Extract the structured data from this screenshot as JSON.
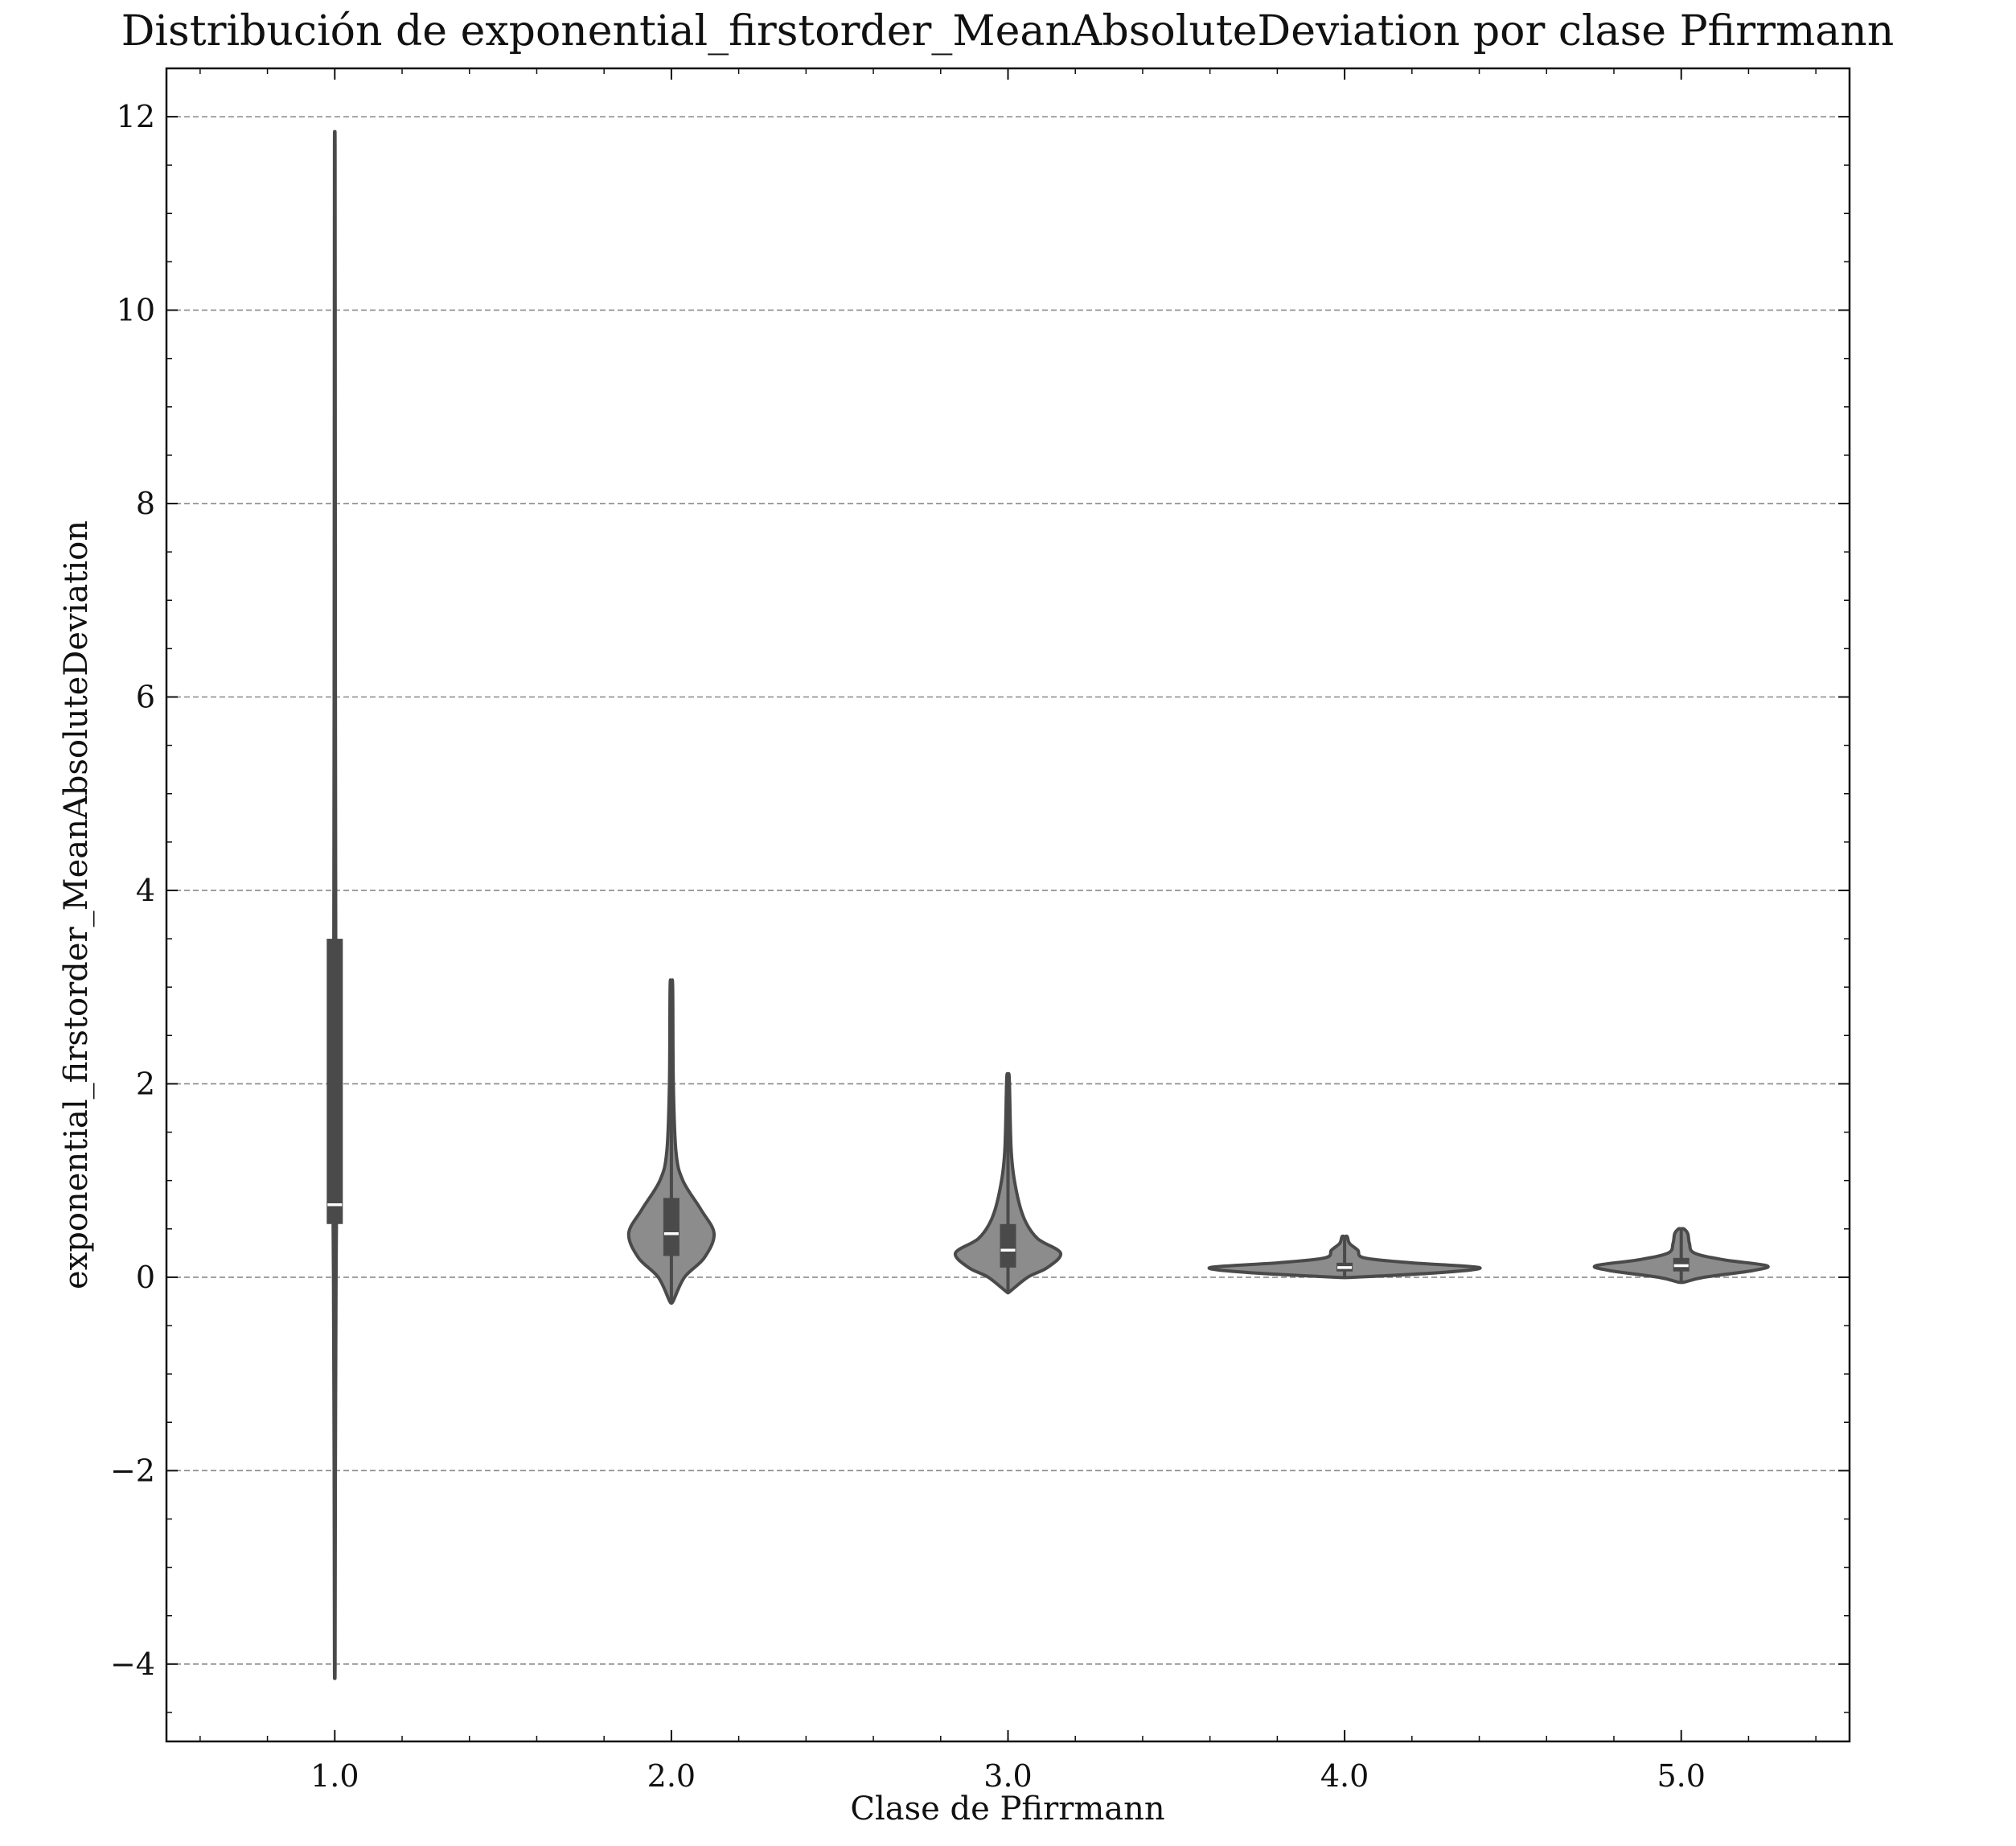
{
  "chart_data": {
    "type": "violin",
    "title": "Distribución de exponential_firstorder_MeanAbsoluteDeviation por clase Pfirrmann",
    "xlabel": "Clase de Pfirrmann",
    "ylabel": "exponential_firstorder_MeanAbsoluteDeviation",
    "categories": [
      "1.0",
      "2.0",
      "3.0",
      "4.0",
      "5.0"
    ],
    "x_tick_labels": [
      "1.0",
      "2.0",
      "3.0",
      "4.0",
      "5.0"
    ],
    "y_ticks": [
      -4,
      -2,
      0,
      2,
      4,
      6,
      8,
      10,
      12
    ],
    "y_tick_labels": [
      "−4",
      "−2",
      "0",
      "2",
      "4",
      "6",
      "8",
      "10",
      "12"
    ],
    "ylim": [
      -4.8,
      12.5
    ],
    "xlim": [
      0.5,
      5.5
    ],
    "grid": "horizontal dashed",
    "violin_color": "#8c8c8c",
    "line_color": "#4a4a4a",
    "series": [
      {
        "category": "1.0",
        "min": -4.0,
        "max": 11.65,
        "q1": 0.55,
        "median": 0.75,
        "q3": 3.5,
        "density": [
          [
            -4.0,
            0.001
          ],
          [
            -2.0,
            0.002
          ],
          [
            0.0,
            0.004
          ],
          [
            0.5,
            0.005
          ],
          [
            0.8,
            0.005
          ],
          [
            2.0,
            0.004
          ],
          [
            3.5,
            0.003
          ],
          [
            6.0,
            0.002
          ],
          [
            9.0,
            0.0015
          ],
          [
            11.65,
            0.001
          ]
        ]
      },
      {
        "category": "2.0",
        "min": -0.25,
        "max": 3.0,
        "q1": 0.22,
        "median": 0.45,
        "q3": 0.82,
        "density": [
          [
            -0.25,
            0.005
          ],
          [
            0.0,
            0.04
          ],
          [
            0.2,
            0.1
          ],
          [
            0.45,
            0.13
          ],
          [
            0.7,
            0.09
          ],
          [
            1.0,
            0.035
          ],
          [
            1.3,
            0.014
          ],
          [
            2.0,
            0.006
          ],
          [
            3.0,
            0.004
          ]
        ]
      },
      {
        "category": "3.0",
        "min": -0.15,
        "max": 2.05,
        "q1": 0.1,
        "median": 0.28,
        "q3": 0.55,
        "density": [
          [
            -0.15,
            0.005
          ],
          [
            0.0,
            0.06
          ],
          [
            0.1,
            0.12
          ],
          [
            0.25,
            0.16
          ],
          [
            0.4,
            0.09
          ],
          [
            0.6,
            0.05
          ],
          [
            0.9,
            0.025
          ],
          [
            1.3,
            0.01
          ],
          [
            2.05,
            0.004
          ]
        ]
      },
      {
        "category": "4.0",
        "min": 0.0,
        "max": 0.42,
        "q1": 0.06,
        "median": 0.1,
        "q3": 0.15,
        "density": [
          [
            0.0,
            0.03
          ],
          [
            0.05,
            0.3
          ],
          [
            0.1,
            0.41
          ],
          [
            0.15,
            0.2
          ],
          [
            0.2,
            0.06
          ],
          [
            0.28,
            0.04
          ],
          [
            0.35,
            0.015
          ],
          [
            0.42,
            0.008
          ]
        ]
      },
      {
        "category": "5.0",
        "min": -0.05,
        "max": 0.5,
        "q1": 0.06,
        "median": 0.12,
        "q3": 0.2,
        "density": [
          [
            -0.05,
            0.01
          ],
          [
            0.0,
            0.07
          ],
          [
            0.07,
            0.22
          ],
          [
            0.12,
            0.26
          ],
          [
            0.18,
            0.13
          ],
          [
            0.25,
            0.04
          ],
          [
            0.35,
            0.025
          ],
          [
            0.45,
            0.02
          ],
          [
            0.5,
            0.008
          ]
        ]
      }
    ]
  }
}
